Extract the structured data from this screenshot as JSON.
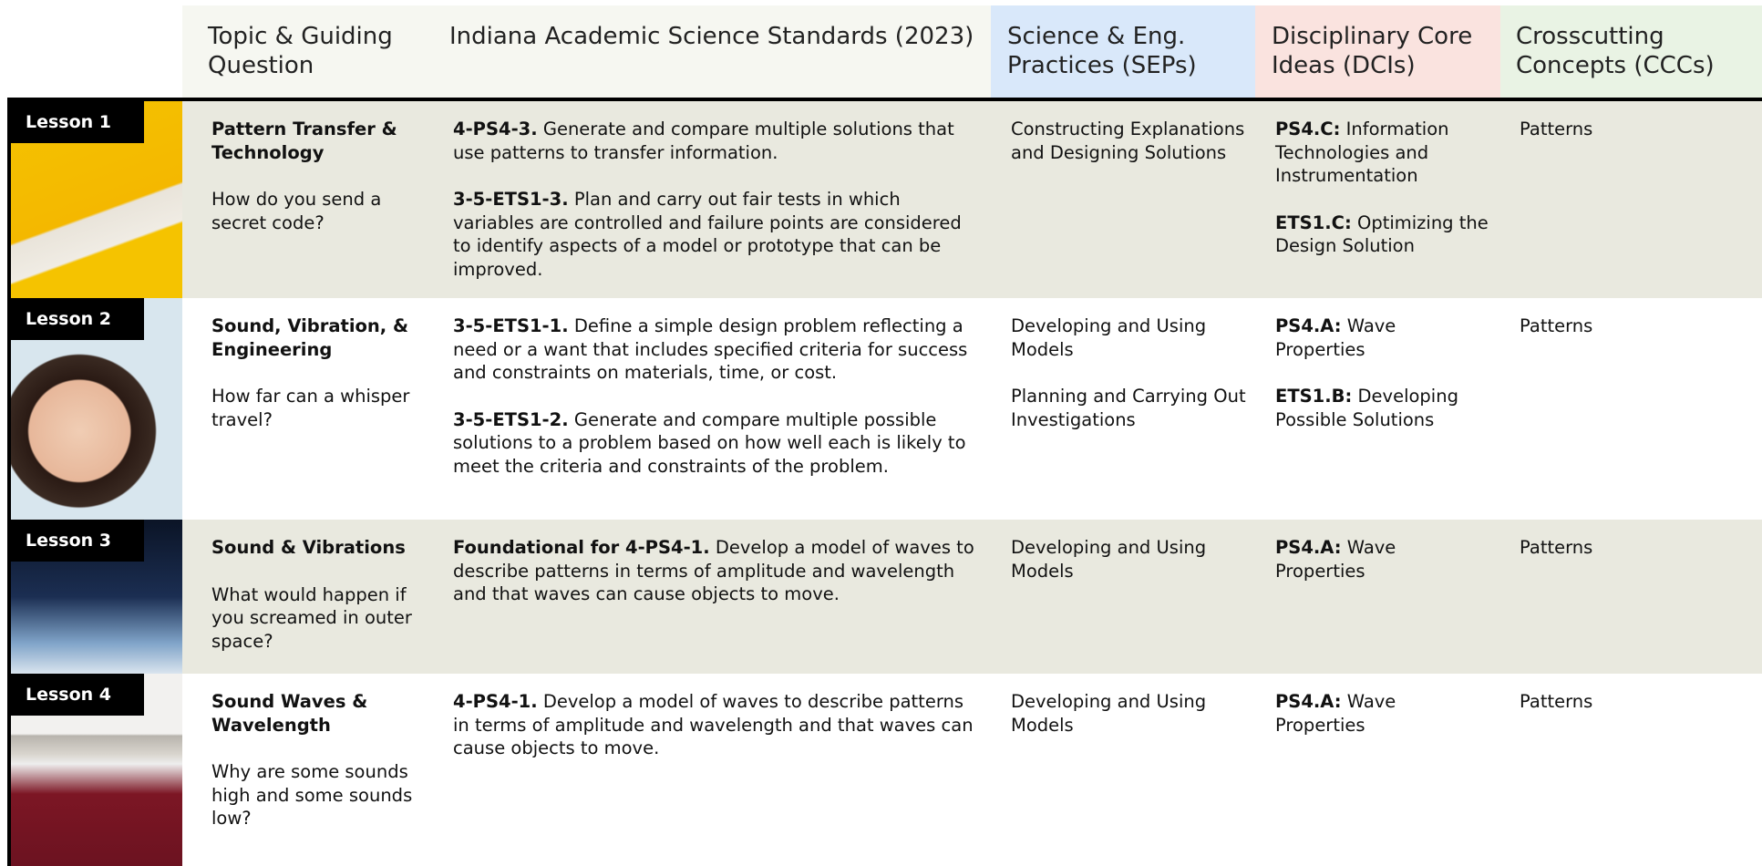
{
  "header": {
    "columns": [
      "Topic & Guiding Question",
      "Indiana Academic Science Standards (2023)",
      "Science & Eng. Practices (SEPs)",
      "Disciplinary Core Ideas (DCIs)",
      "Crosscutting Concepts (CCCs)"
    ]
  },
  "lessons": [
    {
      "label": "Lesson 1",
      "title": "Pattern Transfer & Technology",
      "question": "How do you send a secret code?",
      "standards": [
        {
          "code": "4-PS4-3.",
          "text": "Generate and compare multiple solutions that use patterns to transfer information."
        },
        {
          "code": "3-5-ETS1-3.",
          "text": "Plan and carry out fair tests in which variables are controlled and failure points are considered to identify aspects of a model or prototype that can be improved."
        }
      ],
      "practices": [
        "Constructing Explanations and Designing Solutions"
      ],
      "core_ideas": [
        {
          "code": "PS4.C:",
          "text": "Information Technologies and Instrumentation"
        },
        {
          "code": "ETS1.C:",
          "text": "Optimizing the Design Solution"
        }
      ],
      "concepts": [
        "Patterns"
      ]
    },
    {
      "label": "Lesson 2",
      "title": "Sound, Vibration, & Engineering",
      "question": "How far can a whisper travel?",
      "standards": [
        {
          "code": "3-5-ETS1-1.",
          "text": "Define a simple design problem reflecting a need or a want that includes specified criteria for success and constraints on materials, time, or cost."
        },
        {
          "code": "3-5-ETS1-2.",
          "text": "Generate and compare multiple possible solutions to a problem based on how well each is likely to meet the criteria and constraints of the problem."
        }
      ],
      "practices": [
        "Developing and Using Models",
        "Planning and Carrying Out Investigations"
      ],
      "core_ideas": [
        {
          "code": "PS4.A:",
          "text": "Wave Properties"
        },
        {
          "code": "ETS1.B:",
          "text": "Developing Possible Solutions"
        }
      ],
      "concepts": [
        "Patterns"
      ]
    },
    {
      "label": "Lesson 3",
      "title": "Sound & Vibrations",
      "question": "What would happen if you screamed in outer space?",
      "standards": [
        {
          "code": "Foundational for 4-PS4-1.",
          "text": "Develop a model of waves to describe patterns in terms of amplitude and wavelength and that waves can cause objects to move."
        }
      ],
      "practices": [
        "Developing and Using Models"
      ],
      "core_ideas": [
        {
          "code": "PS4.A:",
          "text": "Wave Properties"
        }
      ],
      "concepts": [
        "Patterns"
      ]
    },
    {
      "label": "Lesson 4",
      "title": "Sound Waves & Wavelength",
      "question": "Why are some sounds high and some sounds low?",
      "standards": [
        {
          "code": "4-PS4-1.",
          "text": "Develop a model of waves to describe patterns in terms of amplitude and wavelength and that waves can cause objects to move."
        }
      ],
      "practices": [
        "Developing and Using Models"
      ],
      "core_ideas": [
        {
          "code": "PS4.A:",
          "text": "Wave Properties"
        }
      ],
      "concepts": [
        "Patterns"
      ]
    }
  ]
}
